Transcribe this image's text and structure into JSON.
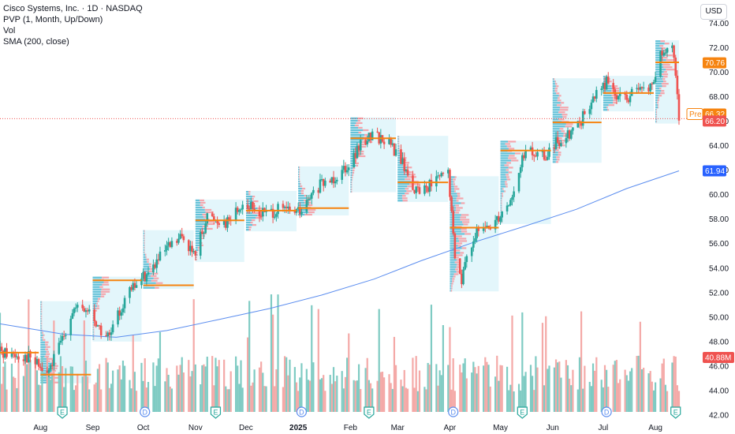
{
  "header": {
    "title": "Cisco Systems, Inc. · 1D · NASDAQ",
    "indicators": [
      "PVP (1, Month, Up/Down)",
      "Vol",
      "SMA (200, close)"
    ],
    "currency": "USD"
  },
  "colors": {
    "up": "#26a69a",
    "down": "#ef5350",
    "vol_up": "#7fcbc3",
    "vol_down": "#f4a9a7",
    "poc": "#f68410",
    "sma": "#5b8def",
    "profile_bg": "#e3f6fb",
    "profile_up": "#66c2d8",
    "profile_down": "#f4a6ad"
  },
  "chart_data": {
    "type": "candlestick",
    "series": [
      "Price",
      "Volume",
      "SMA (200, close)"
    ],
    "ylim": [
      41.5,
      75.5
    ],
    "y_ticks": [
      "42.00",
      "44.00",
      "46.00",
      "48.00",
      "50.00",
      "52.00",
      "54.00",
      "56.00",
      "58.00",
      "60.00",
      "62.00",
      "64.00",
      "66.00",
      "68.00",
      "70.00",
      "72.00",
      "74.00"
    ],
    "x_ticks": [
      {
        "label": "Aug",
        "date": "2024-08-01",
        "bold": false
      },
      {
        "label": "Sep",
        "date": "2024-09-01",
        "bold": false
      },
      {
        "label": "Oct",
        "date": "2024-10-01",
        "bold": false
      },
      {
        "label": "Nov",
        "date": "2024-11-01",
        "bold": false
      },
      {
        "label": "Dec",
        "date": "2024-12-01",
        "bold": false
      },
      {
        "label": "2025",
        "date": "2025-01-01",
        "bold": true
      },
      {
        "label": "Feb",
        "date": "2025-02-01",
        "bold": false
      },
      {
        "label": "Mar",
        "date": "2025-03-01",
        "bold": false
      },
      {
        "label": "Apr",
        "date": "2025-04-01",
        "bold": false
      },
      {
        "label": "May",
        "date": "2025-05-01",
        "bold": false
      },
      {
        "label": "Jun",
        "date": "2025-06-01",
        "bold": false
      },
      {
        "label": "Jul",
        "date": "2025-07-01",
        "bold": false
      },
      {
        "label": "Aug",
        "date": "2025-08-01",
        "bold": false
      }
    ],
    "price_path": [
      [
        "2024-07-08",
        47.2
      ],
      [
        "2024-07-25",
        46.8
      ],
      [
        "2024-08-05",
        45.3
      ],
      [
        "2024-08-12",
        47.5
      ],
      [
        "2024-08-20",
        50.6
      ],
      [
        "2024-08-30",
        50.5
      ],
      [
        "2024-09-06",
        48.8
      ],
      [
        "2024-09-11",
        48.3
      ],
      [
        "2024-09-20",
        51.5
      ],
      [
        "2024-09-30",
        53.2
      ],
      [
        "2024-10-04",
        53.6
      ],
      [
        "2024-10-15",
        55.5
      ],
      [
        "2024-10-25",
        56.6
      ],
      [
        "2024-10-31",
        55.0
      ],
      [
        "2024-11-08",
        58.2
      ],
      [
        "2024-11-20",
        57.8
      ],
      [
        "2024-11-29",
        59.3
      ],
      [
        "2024-12-09",
        58.5
      ],
      [
        "2024-12-20",
        58.7
      ],
      [
        "2025-01-03",
        58.6
      ],
      [
        "2025-01-13",
        60.6
      ],
      [
        "2025-01-22",
        61.4
      ],
      [
        "2025-01-31",
        62.6
      ],
      [
        "2025-02-10",
        64.5
      ],
      [
        "2025-02-14",
        65.0
      ],
      [
        "2025-02-24",
        64.2
      ],
      [
        "2025-03-03",
        62.8
      ],
      [
        "2025-03-12",
        60.2
      ],
      [
        "2025-03-21",
        60.9
      ],
      [
        "2025-03-31",
        61.8
      ],
      [
        "2025-04-04",
        54.8
      ],
      [
        "2025-04-08",
        53.2
      ],
      [
        "2025-04-15",
        56.6
      ],
      [
        "2025-04-24",
        57.3
      ],
      [
        "2025-05-02",
        58.6
      ],
      [
        "2025-05-09",
        60.1
      ],
      [
        "2025-05-15",
        63.4
      ],
      [
        "2025-05-28",
        63.1
      ],
      [
        "2025-06-05",
        64.5
      ],
      [
        "2025-06-16",
        65.6
      ],
      [
        "2025-06-27",
        68.2
      ],
      [
        "2025-07-03",
        69.2
      ],
      [
        "2025-07-11",
        67.8
      ],
      [
        "2025-07-22",
        68.3
      ],
      [
        "2025-07-30",
        68.8
      ],
      [
        "2025-08-04",
        71.3
      ],
      [
        "2025-08-11",
        71.8
      ],
      [
        "2025-08-14",
        68.4
      ],
      [
        "2025-08-15",
        66.2
      ]
    ],
    "sma_path": [
      [
        "2024-07-08",
        49.45
      ],
      [
        "2024-08-15",
        48.6
      ],
      [
        "2024-09-15",
        48.35
      ],
      [
        "2024-10-15",
        48.9
      ],
      [
        "2024-11-15",
        49.8
      ],
      [
        "2024-12-15",
        50.7
      ],
      [
        "2025-01-15",
        51.8
      ],
      [
        "2025-02-15",
        53.1
      ],
      [
        "2025-03-15",
        54.6
      ],
      [
        "2025-04-15",
        56.1
      ],
      [
        "2025-05-15",
        57.4
      ],
      [
        "2025-06-15",
        58.8
      ],
      [
        "2025-07-15",
        60.5
      ],
      [
        "2025-08-15",
        61.94
      ]
    ],
    "monthly_profiles": [
      {
        "start": "2024-08-01",
        "end": "2024-08-31",
        "low": 44.6,
        "high": 51.3,
        "poc": 45.3
      },
      {
        "start": "2024-09-01",
        "end": "2024-09-30",
        "low": 48.0,
        "high": 53.3,
        "poc": 53.0
      },
      {
        "start": "2024-10-01",
        "end": "2024-10-31",
        "low": 52.3,
        "high": 57.1,
        "poc": 52.6
      },
      {
        "start": "2024-11-01",
        "end": "2024-11-30",
        "low": 54.5,
        "high": 59.6,
        "poc": 57.9
      },
      {
        "start": "2024-12-01",
        "end": "2024-12-31",
        "low": 57.0,
        "high": 60.3,
        "poc": 58.7
      },
      {
        "start": "2025-01-01",
        "end": "2025-01-31",
        "low": 58.3,
        "high": 62.3,
        "poc": 58.9
      },
      {
        "start": "2025-02-01",
        "end": "2025-02-28",
        "low": 60.2,
        "high": 66.3,
        "poc": 64.6
      },
      {
        "start": "2025-03-01",
        "end": "2025-03-31",
        "low": 59.4,
        "high": 64.8,
        "poc": 61.0
      },
      {
        "start": "2025-04-01",
        "end": "2025-04-30",
        "low": 52.1,
        "high": 61.5,
        "poc": 57.3
      },
      {
        "start": "2025-05-01",
        "end": "2025-05-31",
        "low": 57.6,
        "high": 64.4,
        "poc": 63.6
      },
      {
        "start": "2025-06-01",
        "end": "2025-06-30",
        "low": 62.6,
        "high": 69.5,
        "poc": 65.9
      },
      {
        "start": "2025-07-01",
        "end": "2025-07-31",
        "low": 66.8,
        "high": 69.7,
        "poc": 68.3
      },
      {
        "start": "2025-08-01",
        "end": "2025-08-15",
        "low": 65.8,
        "high": 72.6,
        "poc": 70.8
      }
    ],
    "earlier_poc": {
      "start": "2024-07-08",
      "end": "2024-07-31",
      "value": 47.1
    },
    "volume_max_label": "40.88M",
    "event_markers": [
      {
        "date": "2024-08-14",
        "type": "E"
      },
      {
        "date": "2024-10-02",
        "type": "D"
      },
      {
        "date": "2024-11-13",
        "type": "E"
      },
      {
        "date": "2025-01-03",
        "type": "D"
      },
      {
        "date": "2025-02-12",
        "type": "E"
      },
      {
        "date": "2025-04-03",
        "type": "D"
      },
      {
        "date": "2025-05-14",
        "type": "E"
      },
      {
        "date": "2025-07-03",
        "type": "D"
      },
      {
        "date": "2025-08-13",
        "type": "E"
      }
    ],
    "price_labels": [
      {
        "value": 70.76,
        "label": "70.76",
        "kind": "poc"
      },
      {
        "value": 66.32,
        "label": "66.32",
        "kind": "pre",
        "prefix": "Pre"
      },
      {
        "value": 66.2,
        "label": "66.20",
        "kind": "last"
      },
      {
        "value": 61.94,
        "label": "61.94",
        "kind": "sma"
      },
      {
        "value": 40.88,
        "label": "40.88M",
        "kind": "volume"
      }
    ]
  }
}
